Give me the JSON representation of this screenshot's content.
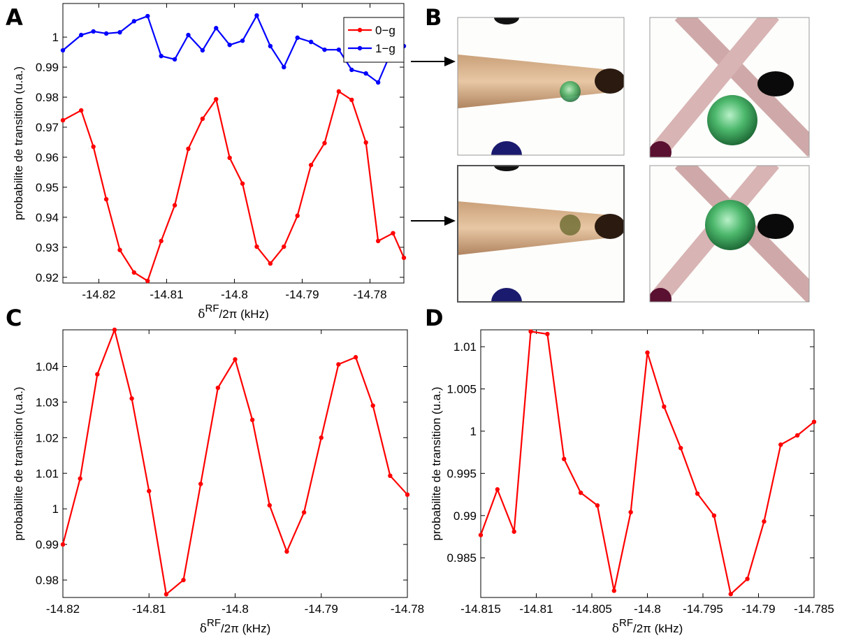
{
  "chart_data": [
    {
      "type": "line",
      "panel": "A",
      "ylabel": "probabilite de transition (u.a.)",
      "xlabel": {
        "symbol": "δ",
        "sup": "RF",
        "rest": "/2π (kHz)"
      },
      "xlim": [
        -14.8253,
        -14.775
      ],
      "ylim": [
        0.9181,
        1.0112
      ],
      "xticks": [
        -14.82,
        -14.81,
        -14.8,
        -14.79,
        -14.78
      ],
      "yticks": [
        0.92,
        0.93,
        0.94,
        0.95,
        0.96,
        0.97,
        0.98,
        0.99,
        1
      ],
      "legend": "upper right",
      "x": [
        -14.8253,
        -14.8226,
        -14.8208,
        -14.8189,
        -14.8169,
        -14.8148,
        -14.8128,
        -14.8108,
        -14.8088,
        -14.8068,
        -14.8047,
        -14.8027,
        -14.8007,
        -14.7988,
        -14.7967,
        -14.7947,
        -14.7927,
        -14.7907,
        -14.7887,
        -14.7867,
        -14.7846,
        -14.7827,
        -14.7806,
        -14.7788,
        -14.7766,
        -14.775
      ],
      "series": [
        {
          "name": "0−g",
          "color": "#ff0000",
          "values": [
            0.9723,
            0.9756,
            0.9635,
            0.946,
            0.9291,
            0.9216,
            0.9188,
            0.9321,
            0.944,
            0.9628,
            0.9728,
            0.9793,
            0.9598,
            0.9512,
            0.9302,
            0.9246,
            0.9302,
            0.9405,
            0.9574,
            0.9647,
            0.9819,
            0.9791,
            0.9649,
            0.9321,
            0.9347,
            0.9265
          ]
        },
        {
          "name": "1−g",
          "color": "#0000ff",
          "values": [
            0.9956,
            1.0007,
            1.0019,
            1.0012,
            1.0016,
            1.0053,
            1.007,
            0.9937,
            0.9926,
            1.0007,
            0.9956,
            1.003,
            0.9974,
            0.9988,
            1.0072,
            0.997,
            0.99,
            0.9998,
            0.9984,
            0.9958,
            0.9958,
            0.9891,
            0.9879,
            0.9849,
            0.9965,
            0.997
          ]
        }
      ]
    },
    {
      "type": "image",
      "panel": "B"
    },
    {
      "type": "line",
      "panel": "C",
      "ylabel": "probabilite de transition (u.a.)",
      "xlabel": {
        "symbol": "δ",
        "sup": "RF",
        "rest": "/2π (kHz)"
      },
      "xlim": [
        -14.82,
        -14.78
      ],
      "ylim": [
        0.9751,
        1.0503
      ],
      "xticks": [
        -14.82,
        -14.81,
        -14.8,
        -14.79,
        -14.78
      ],
      "yticks": [
        0.98,
        0.99,
        1,
        1.01,
        1.02,
        1.03,
        1.04
      ],
      "x": [
        -14.82,
        -14.818,
        -14.816,
        -14.814,
        -14.812,
        -14.81,
        -14.808,
        -14.806,
        -14.804,
        -14.802,
        -14.8,
        -14.798,
        -14.796,
        -14.794,
        -14.792,
        -14.79,
        -14.788,
        -14.786,
        -14.784,
        -14.782,
        -14.78
      ],
      "series": [
        {
          "color": "#ff0000",
          "values": [
            0.99,
            1.0085,
            1.0378,
            1.0503,
            1.031,
            1.005,
            0.976,
            0.98,
            1.007,
            1.034,
            1.042,
            1.025,
            1.001,
            0.988,
            0.999,
            1.02,
            1.0406,
            1.0426,
            1.029,
            1.0093,
            1.004
          ]
        }
      ]
    },
    {
      "type": "line",
      "panel": "D",
      "ylabel": "probabilite de transition (u.a.)",
      "xlabel": {
        "symbol": "δ",
        "sup": "RF",
        "rest": "/2π (kHz)"
      },
      "xlim": [
        -14.815,
        -14.785
      ],
      "ylim": [
        0.9803,
        1.012
      ],
      "xticks": [
        -14.815,
        -14.81,
        -14.805,
        -14.8,
        -14.795,
        -14.79,
        -14.785
      ],
      "yticks": [
        0.985,
        0.99,
        0.995,
        1,
        1.005,
        1.01
      ],
      "x": [
        -14.815,
        -14.8135,
        -14.812,
        -14.8105,
        -14.809,
        -14.8075,
        -14.806,
        -14.8045,
        -14.803,
        -14.8015,
        -14.8,
        -14.7985,
        -14.797,
        -14.7955,
        -14.794,
        -14.7925,
        -14.791,
        -14.7895,
        -14.788,
        -14.7865,
        -14.785
      ],
      "series": [
        {
          "color": "#ff0000",
          "values": [
            0.9877,
            0.9931,
            0.9881,
            1.0118,
            1.0115,
            0.9967,
            0.9927,
            0.9912,
            0.9811,
            0.9904,
            1.0093,
            1.0029,
            0.998,
            0.9926,
            0.99,
            0.9807,
            0.9825,
            0.9893,
            0.9984,
            0.9995,
            1.0011
          ]
        }
      ]
    }
  ]
}
